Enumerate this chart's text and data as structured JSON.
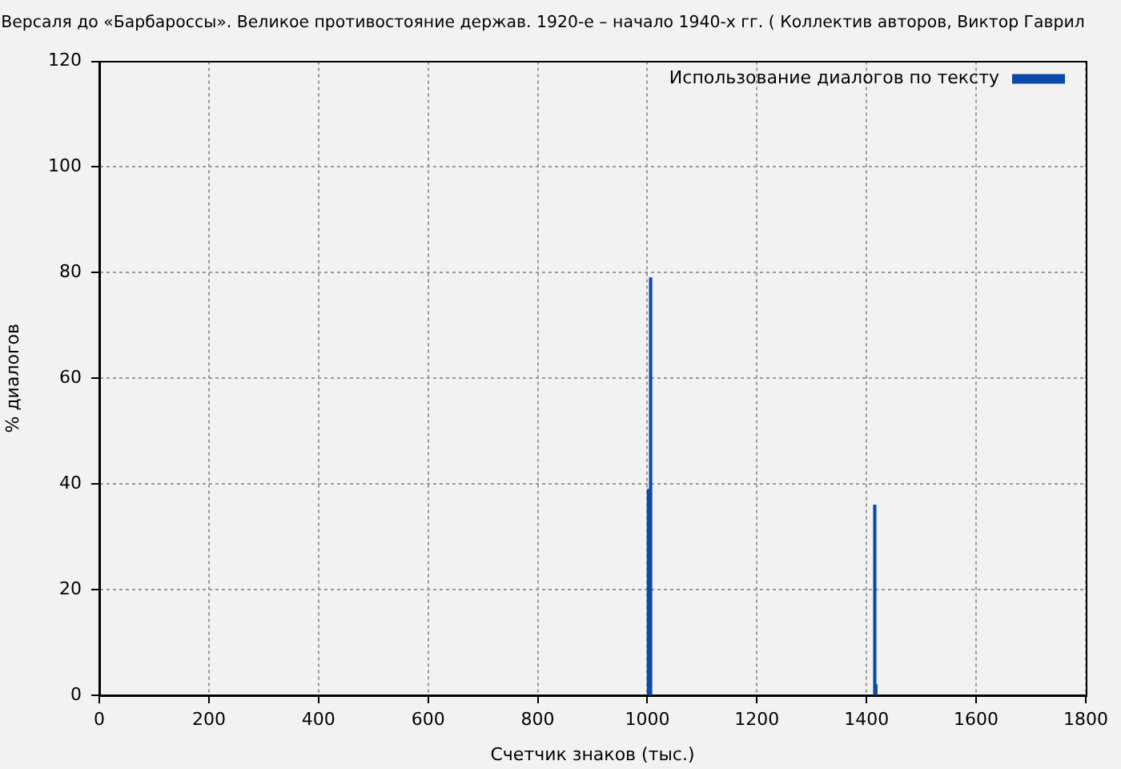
{
  "chart_data": {
    "type": "bar",
    "title": "Версаля до «Барбароссы». Великое противостояние держав. 1920-е – начало 1940-х гг. ( Коллектив авторов, Виктор Гаврил",
    "xlabel": "Счетчик знаков (тыс.)",
    "ylabel": "% диалогов",
    "x": [
      1002,
      1006,
      1415,
      1417
    ],
    "series": [
      {
        "name": "Использование диалогов по тексту",
        "color": "#0b4aa8",
        "values": [
          39,
          79,
          36,
          2
        ]
      }
    ],
    "xlim": [
      0,
      1800
    ],
    "xticks": [
      0,
      200,
      400,
      600,
      800,
      1000,
      1200,
      1400,
      1600,
      1800
    ],
    "ylim": [
      0,
      120
    ],
    "yticks": [
      0,
      20,
      40,
      60,
      80,
      100,
      120
    ],
    "grid": true,
    "legend": "top right"
  }
}
